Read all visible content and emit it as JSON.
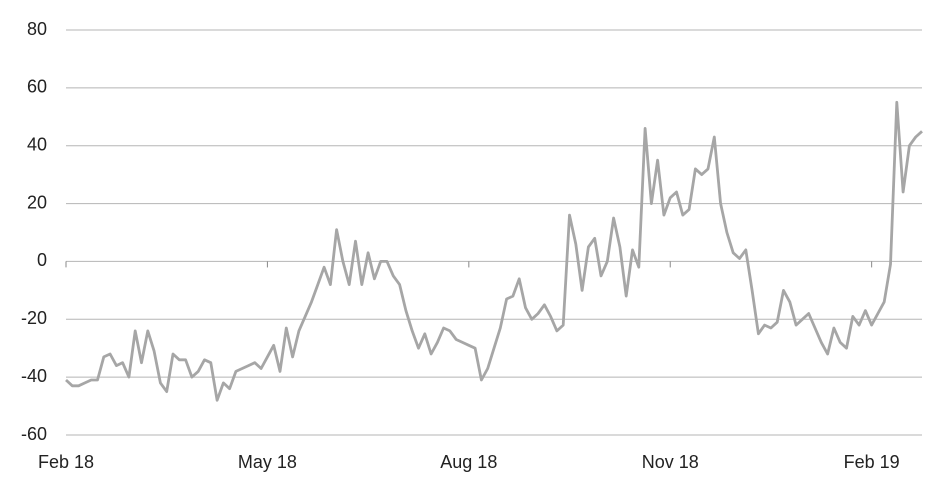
{
  "chart_data": {
    "type": "line",
    "color": "#a6a6a6",
    "grid": true,
    "ylim": [
      -60,
      80
    ],
    "yticks": [
      -60,
      -40,
      -20,
      0,
      20,
      40,
      60,
      80
    ],
    "categories": [
      "Feb 18",
      null,
      null,
      null,
      null,
      null,
      null,
      null,
      null,
      null,
      null,
      null,
      null,
      null,
      null,
      null,
      null,
      null,
      null,
      null,
      null,
      null,
      null,
      null,
      null,
      null,
      null,
      null,
      null,
      null,
      null,
      null,
      "May 18",
      null,
      null,
      null,
      null,
      null,
      null,
      null,
      null,
      null,
      null,
      null,
      null,
      null,
      null,
      null,
      null,
      null,
      null,
      null,
      null,
      null,
      null,
      null,
      null,
      null,
      null,
      null,
      null,
      null,
      null,
      null,
      "Aug 18",
      null,
      null,
      null,
      null,
      null,
      null,
      null,
      null,
      null,
      null,
      null,
      null,
      null,
      null,
      null,
      null,
      null,
      null,
      null,
      null,
      null,
      null,
      null,
      null,
      null,
      null,
      null,
      null,
      null,
      null,
      null,
      "Nov 18",
      null,
      null,
      null,
      null,
      null,
      null,
      null,
      null,
      null,
      null,
      null,
      null,
      null,
      null,
      null,
      null,
      null,
      null,
      null,
      null,
      null,
      null,
      null,
      null,
      null,
      null,
      null,
      null,
      null,
      null,
      null,
      "Feb 19",
      null,
      null,
      null,
      null,
      null,
      null,
      null,
      null
    ],
    "values": [
      -41,
      -43,
      -43,
      -42,
      -41,
      -41,
      -33,
      -32,
      -36,
      -35,
      -40,
      -24,
      -35,
      -24,
      -31,
      -42,
      -45,
      -32,
      -34,
      -34,
      -40,
      -38,
      -34,
      -35,
      -48,
      -42,
      -44,
      -38,
      -37,
      -36,
      -35,
      -37,
      -33,
      -29,
      -38,
      -23,
      -33,
      -24,
      -19,
      -14,
      -8,
      -2,
      -8,
      11,
      0,
      -8,
      7,
      -8,
      3,
      -6,
      0,
      0,
      -5,
      -8,
      -17,
      -24,
      -30,
      -25,
      -32,
      -28,
      -23,
      -24,
      -27,
      -28,
      -29,
      -30,
      -41,
      -37,
      -30,
      -23,
      -13,
      -12,
      -6,
      -16,
      -20,
      -18,
      -15,
      -19,
      -24,
      -22,
      16,
      6,
      -10,
      5,
      8,
      -5,
      0,
      15,
      5,
      -12,
      4,
      -2,
      46,
      20,
      35,
      16,
      22,
      24,
      16,
      18,
      32,
      30,
      32,
      43,
      20,
      10,
      3,
      1,
      4,
      -10,
      -25,
      -22,
      -23,
      -21,
      -10,
      -14,
      -22,
      -20,
      -18,
      -23,
      -28,
      -32,
      -23,
      -28,
      -30,
      -19,
      -22,
      -17,
      -22,
      -18,
      -14,
      -1,
      55,
      24,
      40,
      43,
      45
    ]
  }
}
